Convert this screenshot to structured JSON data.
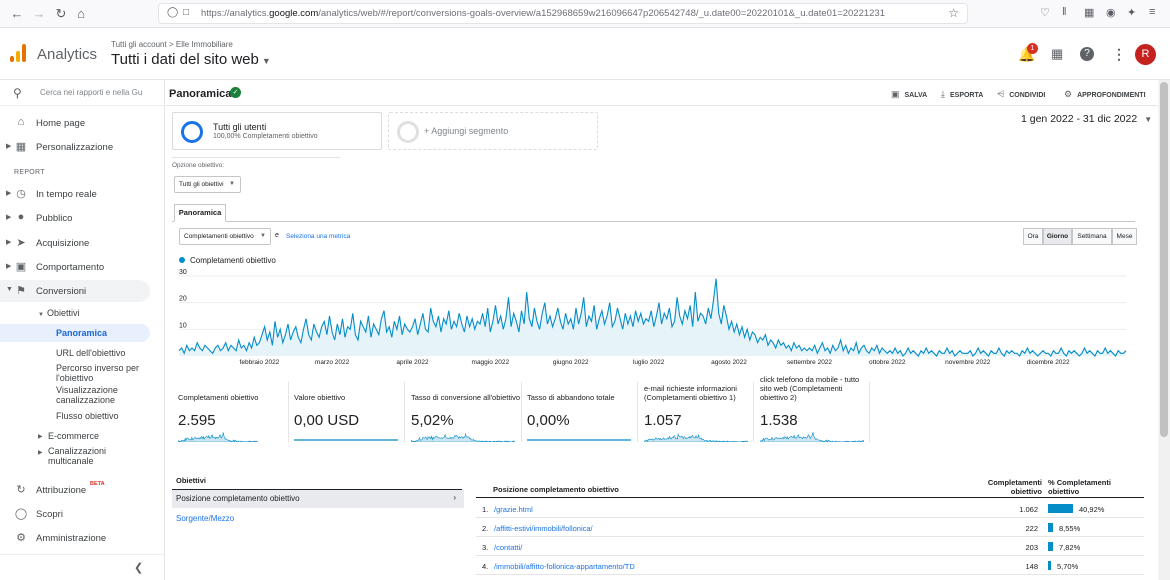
{
  "browser": {
    "url_prefix": "https://analytics.",
    "url_domain": "google.com",
    "url_suffix": "/analytics/web/#/report/conversions-goals-overview/a152968659w216096647p206542748/_u.date00=20220101&_u.date01=20221231"
  },
  "header": {
    "app_name": "Analytics",
    "crumb_account": "Tutti gli account",
    "crumb_sep": ">",
    "crumb_property": "Elle Immobiliare",
    "view_title": "Tutti i dati del sito web",
    "notification_count": "1",
    "avatar_letter": "R"
  },
  "sidebar": {
    "search_placeholder": "Cerca nei rapporti e nella Gu",
    "home": "Home page",
    "personalizzazione": "Personalizzazione",
    "report_label": "REPORT",
    "tempo_reale": "In tempo reale",
    "pubblico": "Pubblico",
    "acquisizione": "Acquisizione",
    "comportamento": "Comportamento",
    "conversioni": "Conversioni",
    "obiettivi": "Obiettivi",
    "panoramica": "Panoramica",
    "url_obiettivo": "URL dell'obiettivo",
    "percorso_inverso": "Percorso inverso per l'obiettivo",
    "visualizzazione": "Visualizzazione canalizzazione",
    "flusso": "Flusso obiettivo",
    "ecommerce": "E-commerce",
    "canalizzazioni": "Canalizzazioni multicanale",
    "attribuzione": "Attribuzione",
    "beta": "BETA",
    "scopri": "Scopri",
    "amministrazione": "Amministrazione"
  },
  "toolbar": {
    "title": "Panoramica",
    "save": "SALVA",
    "export": "ESPORTA",
    "share": "CONDIVIDI",
    "insights": "APPROFONDIMENTI"
  },
  "segments": {
    "seg1_title": "Tutti gli utenti",
    "seg1_sub": "100,00% Completamenti obiettivo",
    "add": "+ Aggiungi segmento"
  },
  "date_range": "1 gen 2022 - 31 dic 2022",
  "goal_option": {
    "label": "Opzione obiettivo:",
    "value": "Tutti gli obiettivi"
  },
  "tab": "Panoramica",
  "metric_select": "Completamenti obiettivo",
  "vs": "e",
  "select_metric": "Seleziona una metrica",
  "granularity": [
    "Ora",
    "Giorno",
    "Settimana",
    "Mese"
  ],
  "granularity_selected": "Giorno",
  "colors": {
    "series": "#058dc7",
    "fill": "#e6f3f9",
    "accent": "#1a73e8"
  },
  "chart_data": {
    "type": "area",
    "series": [
      {
        "name": "Completamenti obiettivo"
      }
    ],
    "yticks": [
      10,
      20,
      30
    ],
    "ylim": [
      0,
      33
    ],
    "xticks": [
      "febbraio 2022",
      "marzo 2022",
      "aprile 2022",
      "maggio 2022",
      "giugno 2022",
      "luglio 2022",
      "agosto 2022",
      "settembre 2022",
      "ottobre 2022",
      "novembre 2022",
      "dicembre 2022"
    ],
    "monthly_daily_values": [
      [
        2,
        3,
        1,
        4,
        2,
        3,
        2,
        5,
        3,
        2,
        4,
        3,
        2,
        1,
        3,
        4,
        2,
        3,
        5,
        2,
        4,
        3,
        2,
        6,
        3,
        4,
        2,
        5,
        3,
        7,
        4
      ],
      [
        5,
        8,
        11,
        6,
        9,
        4,
        13,
        7,
        10,
        5,
        8,
        12,
        6,
        9,
        11,
        7,
        5,
        10,
        14,
        8,
        6,
        12,
        9,
        7,
        11,
        13,
        8,
        15
      ],
      [
        9,
        6,
        12,
        8,
        14,
        7,
        11,
        10,
        16,
        8,
        6,
        13,
        11,
        9,
        15,
        7,
        12,
        10,
        8,
        14,
        17,
        9,
        11,
        7,
        13,
        10,
        15,
        8,
        12,
        10,
        9
      ],
      [
        11,
        14,
        8,
        12,
        16,
        10,
        9,
        18,
        13,
        11,
        15,
        9,
        14,
        12,
        17,
        10,
        13,
        11,
        16,
        12,
        9,
        15,
        11,
        14,
        10,
        13,
        12,
        16,
        11,
        18
      ],
      [
        9,
        13,
        19,
        12,
        15,
        10,
        14,
        22,
        11,
        16,
        13,
        9,
        17,
        12,
        24,
        14,
        11,
        18,
        13,
        10,
        16,
        20,
        12,
        15,
        11,
        14,
        18,
        13,
        10,
        16,
        12
      ],
      [
        14,
        10,
        18,
        12,
        16,
        22,
        11,
        15,
        13,
        19,
        10,
        14,
        17,
        12,
        15,
        20,
        11,
        13,
        18,
        14,
        10,
        16,
        12,
        15,
        11,
        17,
        13,
        16,
        12,
        14
      ],
      [
        13,
        17,
        11,
        15,
        20,
        12,
        16,
        14,
        18,
        11,
        13,
        22,
        15,
        12,
        17,
        14,
        19,
        11,
        24,
        13,
        16,
        15,
        12,
        18,
        14,
        21,
        29,
        16,
        12,
        19,
        15
      ],
      [
        10,
        13,
        9,
        12,
        8,
        11,
        7,
        10,
        6,
        9,
        8,
        5,
        7,
        6,
        8,
        4,
        6,
        5,
        3,
        6,
        4,
        5,
        3,
        4,
        2,
        5,
        3,
        4,
        2,
        3,
        2
      ],
      [
        3,
        2,
        4,
        1,
        3,
        5,
        2,
        3,
        1,
        4,
        2,
        3,
        6,
        2,
        4,
        1,
        3,
        2,
        5,
        1,
        3,
        4,
        2,
        1,
        3,
        2,
        4,
        1,
        3,
        2
      ],
      [
        1,
        2,
        1,
        3,
        1,
        2,
        0,
        1,
        3,
        1,
        2,
        1,
        0,
        2,
        1,
        3,
        1,
        2,
        1,
        0,
        2,
        1,
        1,
        3,
        1,
        2,
        0,
        1,
        2,
        1,
        1
      ],
      [
        1,
        2,
        0,
        1,
        3,
        1,
        2,
        1,
        0,
        2,
        1,
        1,
        3,
        1,
        0,
        2,
        1,
        2,
        1,
        1,
        0,
        2,
        1,
        3,
        1,
        2,
        1,
        0,
        1,
        2,
        1
      ],
      [
        1,
        0,
        2,
        1,
        1,
        3,
        1,
        0,
        2,
        1,
        2,
        1,
        0,
        1,
        3,
        1,
        2,
        1,
        0,
        2,
        1,
        1,
        3,
        1,
        2,
        1,
        0,
        2,
        1,
        1,
        2
      ]
    ]
  },
  "kpis": [
    {
      "label": "Completamenti obiettivo",
      "value": "2.595"
    },
    {
      "label": "Valore obiettivo",
      "value": "0,00 USD"
    },
    {
      "label": "Tasso di conversione all'obiettivo",
      "value": "5,02%"
    },
    {
      "label": "Tasso di abbandono totale",
      "value": "0,00%"
    },
    {
      "label": "e-mail richieste informazioni (Completamenti obiettivo 1)",
      "value": "1.057"
    },
    {
      "label": "click telefono da mobile - tutto sito web (Completamenti obiettivo 2)",
      "value": "1.538"
    }
  ],
  "objectives": {
    "heading": "Obiettivi",
    "selected": "Posizione completamento obiettivo",
    "other": "Sorgente/Mezzo"
  },
  "table": {
    "col1": "Posizione completamento obiettivo",
    "col2": "Completamenti obiettivo",
    "col3": "% Completamenti obiettivo",
    "rows": [
      {
        "n": "1.",
        "path": "/grazie.html",
        "value": "1.062",
        "pct": "40,92%",
        "share": 0.4092
      },
      {
        "n": "2.",
        "path": "/affitti-estivi/immobili/follonica/",
        "value": "222",
        "pct": "8,55%",
        "share": 0.0855
      },
      {
        "n": "3.",
        "path": "/contatti/",
        "value": "203",
        "pct": "7,82%",
        "share": 0.0782
      },
      {
        "n": "4.",
        "path": "/immobili/affitto-follonica-appartamento/TD",
        "value": "148",
        "pct": "5,70%",
        "share": 0.057
      }
    ]
  }
}
